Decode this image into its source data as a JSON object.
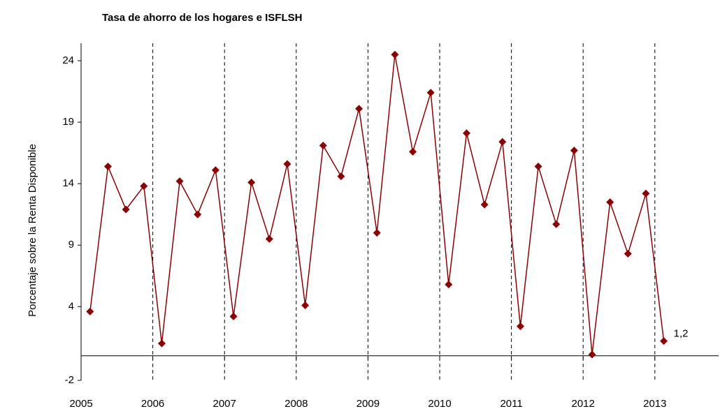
{
  "chart_data": {
    "type": "line",
    "title": "Tasa de ahorro de los hogares e ISFLSH",
    "y_label": "Porcentaje sobre la Renta Disponible",
    "categories": [
      "2005",
      null,
      null,
      null,
      "2006",
      null,
      null,
      null,
      "2007",
      null,
      null,
      null,
      "2008",
      null,
      null,
      null,
      "2009",
      null,
      null,
      null,
      "2010",
      null,
      null,
      null,
      "2011",
      null,
      null,
      null,
      "2012",
      null,
      null,
      null,
      "2013"
    ],
    "series": [
      {
        "name": "Tasa de ahorro",
        "color": "#8b0000",
        "values": [
          3.6,
          15.4,
          11.9,
          13.8,
          1.0,
          14.2,
          11.5,
          15.1,
          3.2,
          14.1,
          9.5,
          15.6,
          4.1,
          17.1,
          14.6,
          20.1,
          10.0,
          24.5,
          16.6,
          21.4,
          5.8,
          18.1,
          12.3,
          17.4,
          2.4,
          15.4,
          10.7,
          16.7,
          0.1,
          12.5,
          8.3,
          13.2,
          1.2
        ],
        "value_labels": [
          null,
          null,
          null,
          null,
          null,
          null,
          null,
          null,
          null,
          null,
          null,
          null,
          null,
          null,
          null,
          null,
          null,
          null,
          null,
          null,
          null,
          null,
          null,
          null,
          null,
          null,
          null,
          null,
          null,
          null,
          null,
          null,
          "1,2"
        ]
      }
    ],
    "ylim": [
      -2,
      24
    ],
    "yticks": [
      -2,
      4,
      9,
      14,
      19,
      24
    ]
  }
}
